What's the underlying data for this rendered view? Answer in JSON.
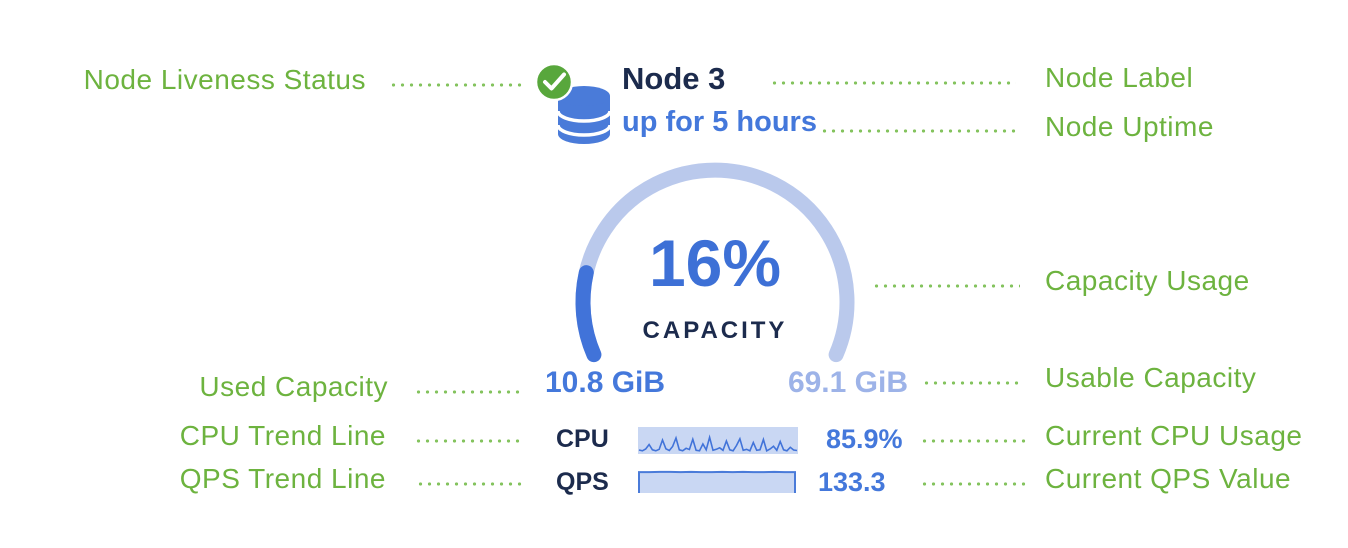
{
  "node": {
    "label": "Node 3",
    "uptime": "up for 5 hours",
    "liveness": "live",
    "capacity_percent": "16%",
    "capacity_caption": "CAPACITY",
    "used_capacity": "10.8 GiB",
    "usable_capacity": "69.1 GiB",
    "cpu_label": "CPU",
    "cpu_value": "85.9%",
    "qps_label": "QPS",
    "qps_value": "133.3"
  },
  "annotations": {
    "node_liveness": "Node Liveness Status",
    "node_label": "Node Label",
    "node_uptime": "Node Uptime",
    "capacity_usage": "Capacity Usage",
    "used_capacity": "Used Capacity",
    "usable_capacity": "Usable Capacity",
    "cpu_trend": "CPU Trend Line",
    "current_cpu": "Current CPU Usage",
    "qps_trend": "QPS Trend Line",
    "current_qps": "Current QPS Value"
  },
  "colors": {
    "green": "#6db33f",
    "dot_green": "#84c35e",
    "navy": "#1c2b4d",
    "blue": "#4478db",
    "blue_deep": "#3d70d6",
    "light_blue": "#9db3e8",
    "track": "#bac9ec",
    "gauge_fill": "#4173d9",
    "spark_bg": "#c9d7f3",
    "db_blue": "#4a7bd9",
    "check_green": "#58a73c"
  },
  "chart_data": [
    {
      "type": "gauge",
      "title": "CAPACITY",
      "value_percent": 16,
      "min": 0,
      "max": 100,
      "arc_degrees": 227,
      "used": "10.8 GiB",
      "usable": "69.1 GiB",
      "legend_position": "none"
    },
    {
      "type": "line",
      "name": "CPU trend sparkline",
      "current_value": 85.9,
      "unit": "%",
      "range": [
        0,
        100
      ],
      "y": [
        12,
        9,
        16,
        34,
        13,
        9,
        15,
        52,
        17,
        10,
        26,
        60,
        13,
        9,
        19,
        14,
        55,
        11,
        9,
        36,
        13,
        63,
        11,
        15,
        21,
        11,
        48,
        13,
        9,
        30,
        57,
        11,
        15,
        9,
        42,
        11,
        13,
        54,
        9,
        16,
        27,
        11,
        46,
        13,
        9,
        23,
        12,
        10
      ]
    },
    {
      "type": "area",
      "name": "QPS trend sparkline",
      "current_value": 133.3,
      "range": [
        0,
        100
      ],
      "y": [
        95,
        95,
        96,
        96,
        95,
        96,
        95,
        95,
        96,
        95,
        96,
        95,
        95,
        96,
        95,
        95
      ]
    }
  ]
}
